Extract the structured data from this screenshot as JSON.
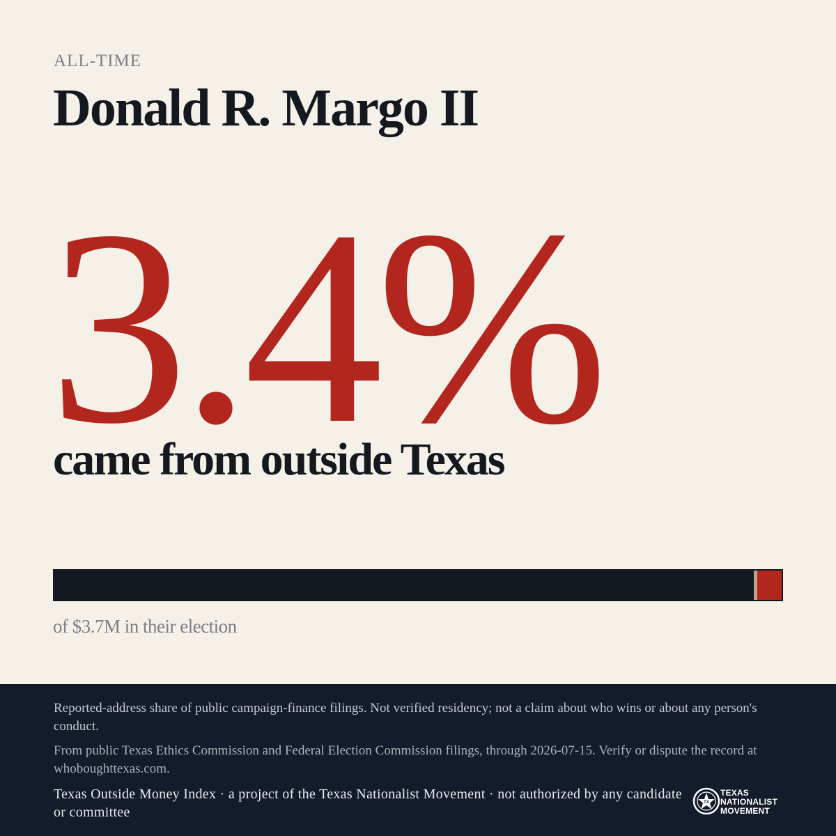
{
  "header": {
    "eyebrow": "ALL-TIME",
    "name": "Donald R. Margo II"
  },
  "stat": {
    "percent_label": "3.4%",
    "headline": "came from outside Texas"
  },
  "chart_data": {
    "type": "bar",
    "orientation": "horizontal-stacked",
    "categories": [
      "Texas",
      "Outside Texas"
    ],
    "values": [
      96.6,
      3.4
    ],
    "unit": "%",
    "colors": [
      "#14181f",
      "#b3261e"
    ],
    "caption": "of $3.7M in their election"
  },
  "footer": {
    "disclaimer": "Reported-address share of public campaign-finance filings. Not verified residency; not a claim about who wins or about any person's conduct.",
    "source": "From public Texas Ethics Commission and Federal Election Commission filings, through 2026-07-15. Verify or dispute the record at whoboughttexas.com.",
    "credit": "Texas Outside Money Index · a project of the Texas Nationalist Movement · not authorized by any candidate or committee",
    "logo": {
      "icon": "star-seal-icon",
      "line1": "TEXAS",
      "line2": "NATIONALIST",
      "line3": "MOVEMENT"
    }
  }
}
